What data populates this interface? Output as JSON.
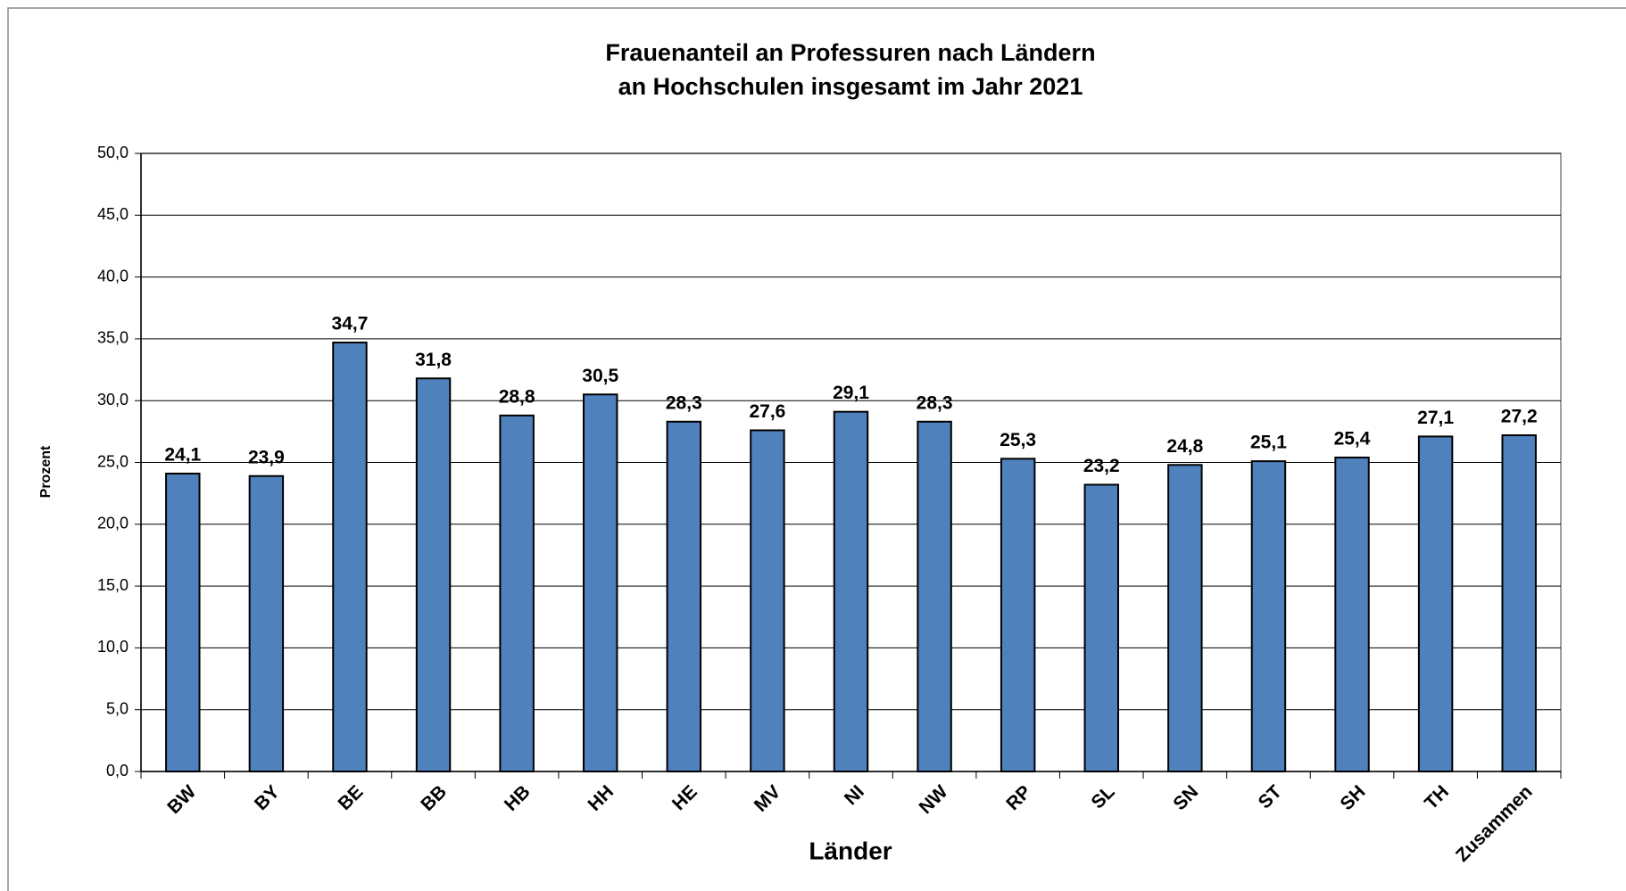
{
  "chart_data": {
    "type": "bar",
    "title": [
      "Frauenanteil an Professuren nach Ländern",
      "an Hochschulen insgesamt im Jahr 2021"
    ],
    "x_label": "Länder",
    "y_label": "Prozent",
    "categories": [
      "BW",
      "BY",
      "BE",
      "BB",
      "HB",
      "HH",
      "HE",
      "MV",
      "NI",
      "NW",
      "RP",
      "SL",
      "SN",
      "ST",
      "SH",
      "TH",
      "Zusammen"
    ],
    "values": [
      24.1,
      23.9,
      34.7,
      31.8,
      28.8,
      30.5,
      28.3,
      27.6,
      29.1,
      28.3,
      25.3,
      23.2,
      24.8,
      25.1,
      25.4,
      27.1,
      27.2
    ],
    "value_labels": [
      "24,1",
      "23,9",
      "34,7",
      "31,8",
      "28,8",
      "30,5",
      "28,3",
      "27,6",
      "29,1",
      "28,3",
      "25,3",
      "23,2",
      "24,8",
      "25,1",
      "25,4",
      "27,1",
      "27,2"
    ],
    "color": "#4f81bd",
    "ylim": [
      0,
      50
    ],
    "yticks": [
      {
        "value": 0,
        "label": "0,0"
      },
      {
        "value": 5,
        "label": "5,0"
      },
      {
        "value": 10,
        "label": "10,0"
      },
      {
        "value": 15,
        "label": "15,0"
      },
      {
        "value": 20,
        "label": "20,0"
      },
      {
        "value": 25,
        "label": "25,0"
      },
      {
        "value": 30,
        "label": "30,0"
      },
      {
        "value": 35,
        "label": "35,0"
      },
      {
        "value": 40,
        "label": "40,0"
      },
      {
        "value": 45,
        "label": "45,0"
      },
      {
        "value": 50,
        "label": "50,0"
      }
    ],
    "grid": true
  }
}
